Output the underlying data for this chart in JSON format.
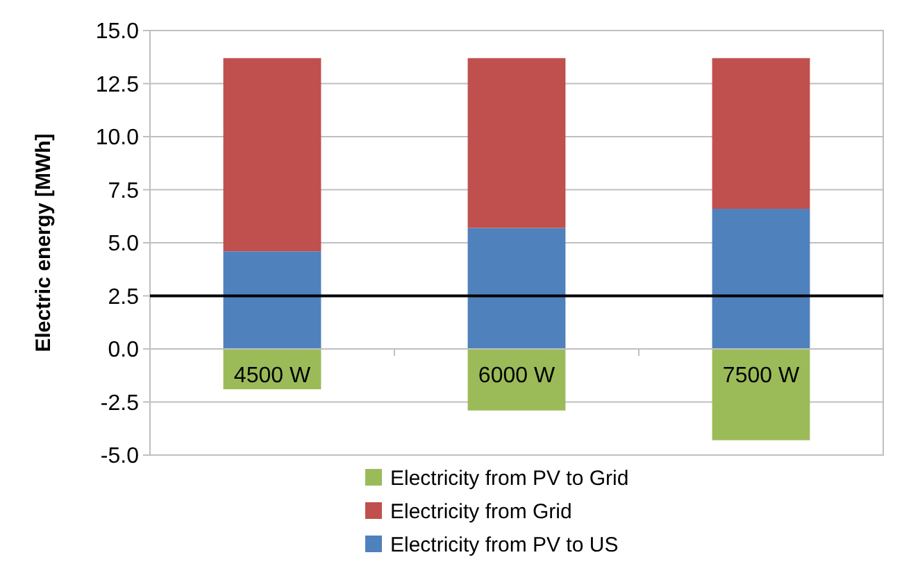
{
  "chart_data": {
    "type": "bar",
    "stacked": true,
    "ylabel": "Electric energy [MWh]",
    "categories": [
      "4500 W",
      "6000 W",
      "7500 W"
    ],
    "series": [
      {
        "name": "Electricity from PV to US",
        "color": "#4f81bd",
        "values": [
          4.6,
          5.7,
          6.6
        ]
      },
      {
        "name": "Electricity from Grid",
        "color": "#c0504d",
        "values": [
          9.1,
          8.0,
          7.1
        ]
      },
      {
        "name": "Electricity from PV to Grid",
        "color": "#9bbb59",
        "values": [
          -1.9,
          -2.9,
          -4.3
        ]
      }
    ],
    "ylim": [
      -5,
      15
    ],
    "yticks": [
      {
        "value": -5,
        "label": "-5.0"
      },
      {
        "value": -2.5,
        "label": "-2.5"
      },
      {
        "value": 0,
        "label": "0.0"
      },
      {
        "value": 2.5,
        "label": "2.5"
      },
      {
        "value": 5,
        "label": "5.0"
      },
      {
        "value": 7.5,
        "label": "7.5"
      },
      {
        "value": 10,
        "label": "10.0"
      },
      {
        "value": 12.5,
        "label": "12.5"
      },
      {
        "value": 15,
        "label": "15.0"
      }
    ],
    "grid": "y",
    "legend": "bottom",
    "ref_lines": [
      {
        "axis": "y",
        "value": 2.5,
        "color": "#000000"
      }
    ]
  }
}
